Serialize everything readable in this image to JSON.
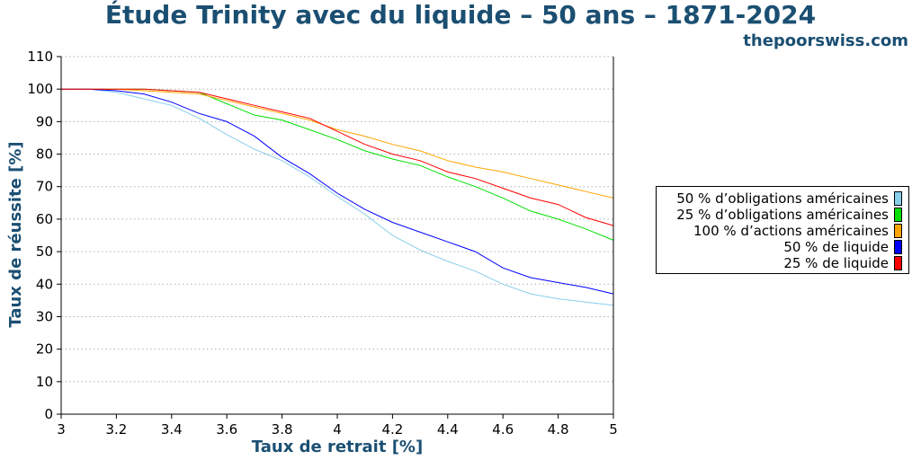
{
  "header": {
    "title": "Étude Trinity avec du liquide – 50 ans – 1871-2024",
    "site": "thepoorswiss.com"
  },
  "colors": {
    "title": "#1b4f72",
    "axis_label": "#1b4f72",
    "grid": "#b0b0b0"
  },
  "chart_data": {
    "type": "line",
    "title": "Étude Trinity avec du liquide – 50 ans – 1871-2024",
    "xlabel": "Taux de retrait [%]",
    "ylabel": "Taux de réussite [%]",
    "xlim": [
      3,
      5
    ],
    "ylim": [
      0,
      110
    ],
    "xticks": [
      3,
      3.2,
      3.4,
      3.6,
      3.8,
      4,
      4.2,
      4.4,
      4.6,
      4.8,
      5
    ],
    "xtick_labels": [
      "3",
      "3.2",
      "3.4",
      "3.6",
      "3.8",
      "4",
      "4.2",
      "4.4",
      "4.6",
      "4.8",
      "5"
    ],
    "yticks": [
      0,
      10,
      20,
      30,
      40,
      50,
      60,
      70,
      80,
      90,
      100,
      110
    ],
    "ytick_labels": [
      "0",
      "10",
      "20",
      "30",
      "40",
      "50",
      "60",
      "70",
      "80",
      "90",
      "100",
      "110"
    ],
    "grid": "horizontal dotted",
    "legend_position": "right",
    "x": [
      3,
      3.1,
      3.2,
      3.3,
      3.4,
      3.5,
      3.6,
      3.7,
      3.8,
      3.9,
      4,
      4.1,
      4.2,
      4.3,
      4.4,
      4.5,
      4.6,
      4.7,
      4.8,
      4.9,
      5
    ],
    "series": [
      {
        "name": "50 % d’obligations américaines",
        "color": "#87ceeb",
        "values": [
          100,
          100,
          99,
          97,
          95,
          91,
          86,
          81.5,
          78,
          73,
          67,
          61.5,
          55,
          50.5,
          47,
          44,
          40,
          37,
          35.5,
          34.5,
          33.5
        ]
      },
      {
        "name": "25 % d’obligations américaines",
        "color": "#00e000",
        "values": [
          100,
          100,
          100,
          100,
          99.5,
          99,
          95.5,
          92,
          90.5,
          87.5,
          84.5,
          81,
          78.5,
          76.5,
          73,
          70,
          66.5,
          62.5,
          60,
          57,
          53.5
        ]
      },
      {
        "name": "100 % d’actions américaines",
        "color": "#ffa500",
        "values": [
          100,
          100,
          100,
          99.5,
          99,
          98.5,
          96.5,
          94.5,
          92.5,
          90.5,
          87.5,
          85.5,
          83,
          81,
          78,
          76,
          74.5,
          72.5,
          70.5,
          68.5,
          66.5
        ]
      },
      {
        "name": "50 % de liquide",
        "color": "#0000ff",
        "values": [
          100,
          100,
          99.5,
          98.5,
          96,
          92.5,
          90,
          85.5,
          79,
          74,
          68,
          63,
          59,
          56,
          53,
          50,
          45,
          42,
          40.5,
          39,
          37
        ]
      },
      {
        "name": "25 % de liquide",
        "color": "#ff0000",
        "values": [
          100,
          100,
          100,
          100,
          99.5,
          99,
          97,
          95,
          93,
          91,
          87,
          83,
          80,
          78,
          74.5,
          72.5,
          69.5,
          66.5,
          64.5,
          60.5,
          58
        ]
      }
    ]
  }
}
